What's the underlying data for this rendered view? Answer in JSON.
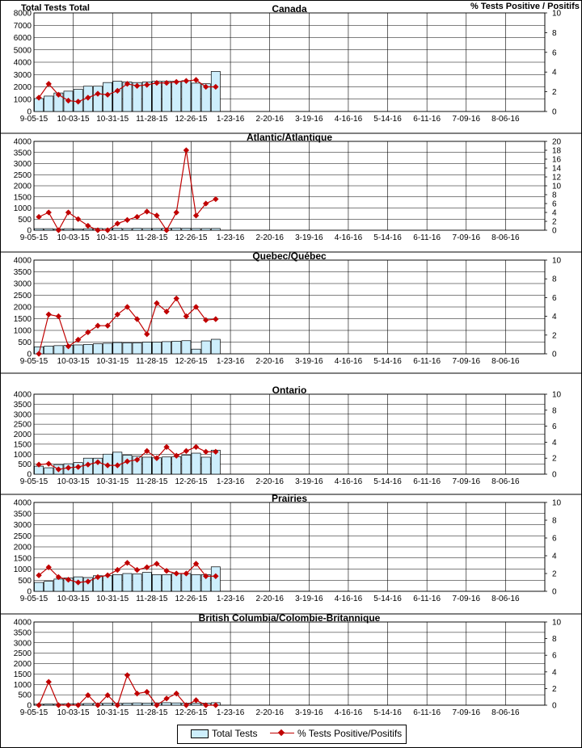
{
  "header": {
    "left_axis_title": "Total Tests Total",
    "right_axis_title": "% Tests Positive / Positifs"
  },
  "legend": {
    "bar_label": "Total Tests",
    "line_label": "% Tests Positive/Positifs",
    "bar_color": "#cdeefc",
    "line_color": "#c00000"
  },
  "x_tick_labels": [
    "9-05-15",
    "10-03-15",
    "10-31-15",
    "11-28-15",
    "12-26-15",
    "1-23-16",
    "2-20-16",
    "3-19-16",
    "4-16-16",
    "5-14-16",
    "6-11-16",
    "7-09-16",
    "8-06-16"
  ],
  "chart_data": [
    {
      "type": "bar+line",
      "title": "Canada",
      "x": [
        "9-05-15",
        "9-12-15",
        "9-19-15",
        "9-26-15",
        "10-03-15",
        "10-10-15",
        "10-17-15",
        "10-24-15",
        "10-31-15",
        "11-07-15",
        "11-14-15",
        "11-21-15",
        "11-28-15",
        "12-05-15",
        "12-12-15",
        "12-19-15",
        "12-26-15",
        "1-02-16",
        "1-09-16"
      ],
      "bars": {
        "name": "Total Tests",
        "values": [
          1050,
          1250,
          1500,
          1650,
          1800,
          2050,
          2050,
          2350,
          2450,
          2400,
          2350,
          2400,
          2450,
          2450,
          2450,
          2500,
          2300,
          2250,
          3250
        ]
      },
      "line": {
        "name": "% Tests Positive/Positifs",
        "values": [
          1.4,
          2.8,
          1.7,
          1.1,
          1.0,
          1.4,
          1.8,
          1.7,
          2.1,
          2.8,
          2.6,
          2.7,
          2.9,
          2.9,
          3.0,
          3.1,
          3.2,
          2.5,
          2.5
        ]
      },
      "ylim_left": [
        0,
        8000
      ],
      "yticks_left": [
        0,
        1000,
        2000,
        3000,
        4000,
        5000,
        6000,
        7000,
        8000
      ],
      "ylim_right": [
        0,
        10
      ],
      "yticks_right": [
        0,
        2,
        4,
        6,
        8,
        10
      ]
    },
    {
      "type": "bar+line",
      "title": "Atlantic/Atlantique",
      "x": [
        "9-05-15",
        "9-12-15",
        "9-19-15",
        "9-26-15",
        "10-03-15",
        "10-10-15",
        "10-17-15",
        "10-24-15",
        "10-31-15",
        "11-07-15",
        "11-14-15",
        "11-21-15",
        "11-28-15",
        "12-05-15",
        "12-12-15",
        "12-19-15",
        "12-26-15",
        "1-02-16",
        "1-09-16"
      ],
      "bars": {
        "name": "Total Tests",
        "values": [
          70,
          70,
          60,
          70,
          60,
          70,
          80,
          70,
          90,
          80,
          90,
          80,
          80,
          90,
          100,
          90,
          80,
          80,
          80
        ]
      },
      "line": {
        "name": "% Tests Positive/Positifs",
        "values": [
          3.0,
          4.0,
          0.0,
          4.0,
          2.5,
          1.0,
          0.0,
          0.0,
          1.5,
          2.3,
          3.0,
          4.2,
          3.3,
          0.0,
          4.0,
          18.0,
          3.3,
          6.0,
          7.0
        ]
      },
      "ylim_left": [
        0,
        4000
      ],
      "yticks_left": [
        0,
        500,
        1000,
        1500,
        2000,
        2500,
        3000,
        3500,
        4000
      ],
      "ylim_right": [
        0,
        20
      ],
      "yticks_right": [
        0,
        2,
        4,
        6,
        8,
        10,
        12,
        14,
        16,
        18,
        20
      ]
    },
    {
      "type": "bar+line",
      "title": "Quebec/Québec",
      "x": [
        "9-05-15",
        "9-12-15",
        "9-19-15",
        "9-26-15",
        "10-03-15",
        "10-10-15",
        "10-17-15",
        "10-24-15",
        "10-31-15",
        "11-07-15",
        "11-14-15",
        "11-21-15",
        "11-28-15",
        "12-05-15",
        "12-12-15",
        "12-19-15",
        "12-26-15",
        "1-02-16",
        "1-09-16"
      ],
      "bars": {
        "name": "Total Tests",
        "values": [
          300,
          330,
          350,
          360,
          380,
          400,
          430,
          450,
          480,
          470,
          470,
          500,
          500,
          520,
          540,
          560,
          200,
          550,
          620
        ]
      },
      "line": {
        "name": "% Tests Positive/Positifs",
        "values": [
          0.0,
          4.2,
          4.0,
          0.8,
          1.5,
          2.3,
          3.0,
          3.0,
          4.2,
          5.0,
          3.7,
          2.1,
          5.4,
          4.5,
          5.9,
          4.0,
          5.0,
          3.6,
          3.7
        ]
      },
      "ylim_left": [
        0,
        4000
      ],
      "yticks_left": [
        0,
        500,
        1000,
        1500,
        2000,
        2500,
        3000,
        3500,
        4000
      ],
      "ylim_right": [
        0,
        10
      ],
      "yticks_right": [
        0,
        2,
        4,
        6,
        8,
        10
      ]
    },
    {
      "type": "bar+line",
      "title": "Ontario",
      "x": [
        "9-05-15",
        "9-12-15",
        "9-19-15",
        "9-26-15",
        "10-03-15",
        "10-10-15",
        "10-17-15",
        "10-24-15",
        "10-31-15",
        "11-07-15",
        "11-14-15",
        "11-21-15",
        "11-28-15",
        "12-05-15",
        "12-12-15",
        "12-19-15",
        "12-26-15",
        "1-02-16",
        "1-09-16"
      ],
      "bars": {
        "name": "Total Tests",
        "values": [
          400,
          320,
          480,
          520,
          580,
          800,
          800,
          1000,
          1100,
          950,
          900,
          850,
          820,
          860,
          880,
          950,
          1050,
          850,
          1200
        ]
      },
      "line": {
        "name": "% Tests Positive/Positifs",
        "values": [
          1.2,
          1.3,
          0.6,
          0.8,
          0.9,
          1.2,
          1.5,
          1.1,
          1.1,
          1.6,
          1.8,
          2.9,
          2.0,
          3.4,
          2.3,
          2.9,
          3.4,
          2.8,
          2.8
        ]
      },
      "ylim_left": [
        0,
        4000
      ],
      "yticks_left": [
        0,
        500,
        1000,
        1500,
        2000,
        2500,
        3000,
        3500,
        4000
      ],
      "ylim_right": [
        0,
        10
      ],
      "yticks_right": [
        0,
        2,
        4,
        6,
        8,
        10
      ]
    },
    {
      "type": "bar+line",
      "title": "Prairies",
      "x": [
        "9-05-15",
        "9-12-15",
        "9-19-15",
        "9-26-15",
        "10-03-15",
        "10-10-15",
        "10-17-15",
        "10-24-15",
        "10-31-15",
        "11-07-15",
        "11-14-15",
        "11-21-15",
        "11-28-15",
        "12-05-15",
        "12-12-15",
        "12-19-15",
        "12-26-15",
        "1-02-16",
        "1-09-16"
      ],
      "bars": {
        "name": "Total Tests",
        "values": [
          400,
          450,
          550,
          600,
          650,
          620,
          700,
          700,
          750,
          800,
          780,
          850,
          750,
          750,
          800,
          800,
          750,
          750,
          1100
        ]
      },
      "line": {
        "name": "% Tests Positive/Positifs",
        "values": [
          1.8,
          2.7,
          1.6,
          1.3,
          1.0,
          1.1,
          1.6,
          1.8,
          2.4,
          3.2,
          2.4,
          2.7,
          3.1,
          2.3,
          2.0,
          2.0,
          3.1,
          1.7,
          1.7
        ]
      },
      "ylim_left": [
        0,
        4000
      ],
      "yticks_left": [
        0,
        500,
        1000,
        1500,
        2000,
        2500,
        3000,
        3500,
        4000
      ],
      "ylim_right": [
        0,
        10
      ],
      "yticks_right": [
        0,
        2,
        4,
        6,
        8,
        10
      ]
    },
    {
      "type": "bar+line",
      "title": "British Columbia/Colombie-Britannique",
      "x": [
        "9-05-15",
        "9-12-15",
        "9-19-15",
        "9-26-15",
        "10-03-15",
        "10-10-15",
        "10-17-15",
        "10-24-15",
        "10-31-15",
        "11-07-15",
        "11-14-15",
        "11-21-15",
        "11-28-15",
        "12-05-15",
        "12-12-15",
        "12-19-15",
        "12-26-15",
        "1-02-16",
        "1-09-16"
      ],
      "bars": {
        "name": "Total Tests",
        "values": [
          50,
          60,
          60,
          70,
          70,
          80,
          90,
          90,
          90,
          100,
          110,
          100,
          110,
          120,
          110,
          100,
          90,
          100,
          120
        ]
      },
      "line": {
        "name": "% Tests Positive/Positifs",
        "values": [
          0.0,
          2.8,
          0.0,
          0.0,
          0.0,
          1.2,
          0.0,
          1.2,
          0.0,
          3.6,
          1.4,
          1.6,
          0.0,
          0.8,
          1.4,
          0.0,
          0.6,
          0.0,
          0.0
        ]
      },
      "ylim_left": [
        0,
        4000
      ],
      "yticks_left": [
        0,
        500,
        1000,
        1500,
        2000,
        2500,
        3000,
        3500,
        4000
      ],
      "ylim_right": [
        0,
        10
      ],
      "yticks_right": [
        0,
        2,
        4,
        6,
        8,
        10
      ]
    }
  ]
}
